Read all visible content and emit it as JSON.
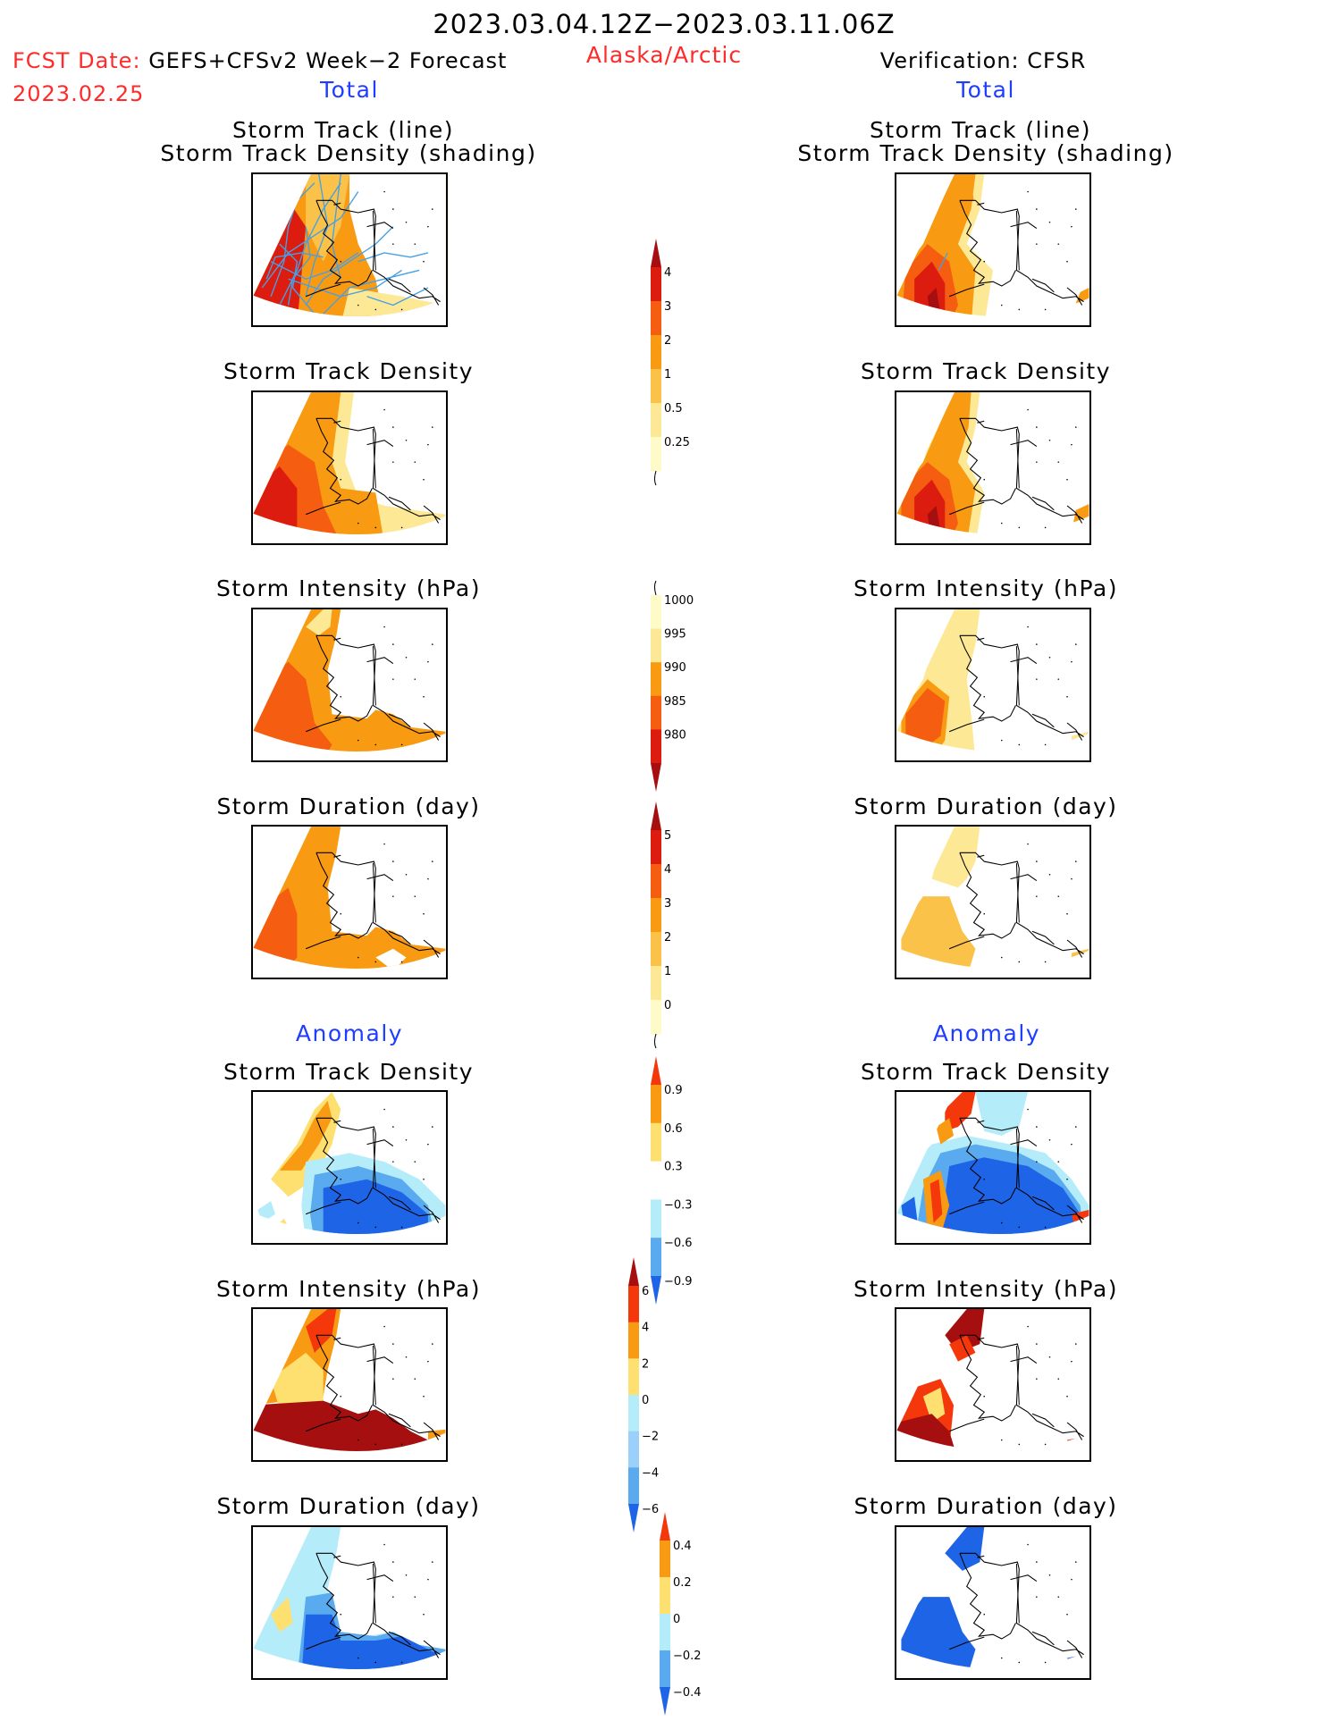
{
  "header": {
    "period": "2023.03.04.12Z−2023.03.11.06Z",
    "fcst_prefix": "FCST Date:",
    "fcst_model": "GEFS+CFSv2 Week−2 Forecast",
    "fcst_date": "2023.02.25",
    "region": "Alaska/Arctic",
    "verification": "Verification: CFSR"
  },
  "columns": {
    "left": {
      "total": "Total",
      "anomaly": "Anomaly"
    },
    "right": {
      "total": "Total",
      "anomaly": "Anomaly"
    }
  },
  "panels": {
    "track_line": "Storm Track (line)",
    "track_shading": "Storm Track Density (shading)",
    "density": "Storm Track Density",
    "intensity": "Storm Intensity (hPa)",
    "duration": "Storm Duration (day)",
    "anom_density": "Storm Track Density",
    "anom_intensity": "Storm Intensity (hPa)",
    "anom_duration": "Storm Duration (day)"
  },
  "colorbars": {
    "density_total": {
      "ticks": [
        "4",
        "3",
        "2",
        "1",
        "0.5",
        "0.25"
      ],
      "colors": [
        "#a50f0f",
        "#dd1c10",
        "#f55d10",
        "#f89a12",
        "#fbc24a",
        "#fde895",
        "#fffbc8"
      ]
    },
    "intensity_total": {
      "ticks": [
        "1000",
        "995",
        "990",
        "985",
        "980"
      ],
      "colors": [
        "#fffbc8",
        "#fde895",
        "#f89a12",
        "#f55d10",
        "#dd1c10",
        "#a50f0f"
      ]
    },
    "duration_total": {
      "ticks": [
        "5",
        "4",
        "3",
        "2",
        "1",
        "0"
      ],
      "colors": [
        "#a50f0f",
        "#dd1c10",
        "#f55d10",
        "#f89a12",
        "#fbc24a",
        "#fde895",
        "#fffbc8"
      ]
    },
    "density_anom": {
      "ticks": [
        "0.9",
        "0.6",
        "0.3",
        "−0.3",
        "−0.6",
        "−0.9"
      ],
      "colors": [
        "#f5380c",
        "#f89a12",
        "#fde070",
        "#ffffff",
        "#b5ecfa",
        "#5aaaf0",
        "#1e64e6"
      ]
    },
    "intensity_anom": {
      "ticks": [
        "6",
        "4",
        "2",
        "0",
        "−2",
        "−4",
        "−6"
      ],
      "colors": [
        "#a50f0f",
        "#f5380c",
        "#f89a12",
        "#fde070",
        "#b5ecfa",
        "#9ad1fa",
        "#5aaaf0",
        "#1e64e6"
      ]
    },
    "duration_anom": {
      "ticks": [
        "0.4",
        "0.2",
        "0",
        "−0.2",
        "−0.4"
      ],
      "colors": [
        "#f5380c",
        "#f89a12",
        "#fde070",
        "#b5ecfa",
        "#5aaaf0",
        "#1e64e6"
      ]
    }
  }
}
